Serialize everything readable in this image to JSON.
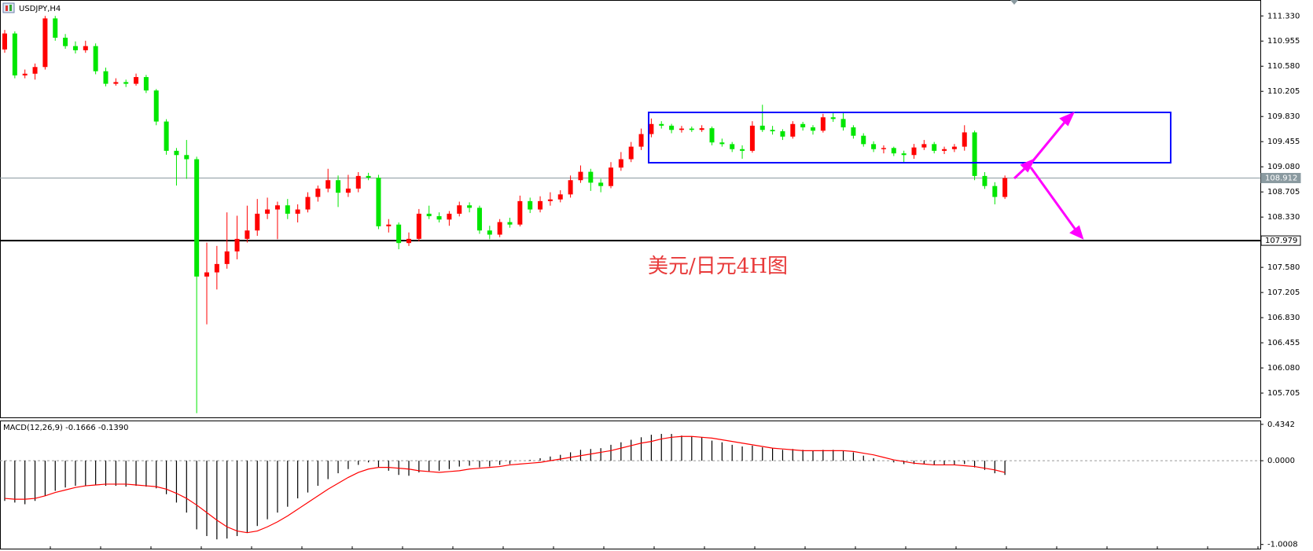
{
  "chart_data": [
    {
      "type": "candlestick",
      "title": "USDJPY,H4",
      "annotation": "美元/日元4H图",
      "up_color": "#ff0000",
      "down_color": "#00e600",
      "ylim": [
        105.3425,
        111.5675
      ],
      "yticks": [
        {
          "value": 111.33,
          "label": "111.330"
        },
        {
          "value": 110.955,
          "label": "110.955"
        },
        {
          "value": 110.58,
          "label": "110.580"
        },
        {
          "value": 110.205,
          "label": "110.205"
        },
        {
          "value": 109.83,
          "label": "109.830"
        },
        {
          "value": 109.455,
          "label": "109.455"
        },
        {
          "value": 109.08,
          "label": "109.080"
        },
        {
          "value": 108.705,
          "label": "108.705"
        },
        {
          "value": 108.33,
          "label": "108.330"
        },
        {
          "value": 107.58,
          "label": "107.580"
        },
        {
          "value": 107.205,
          "label": "107.205"
        },
        {
          "value": 106.83,
          "label": "106.830"
        },
        {
          "value": 106.455,
          "label": "106.455"
        },
        {
          "value": 106.08,
          "label": "106.080"
        },
        {
          "value": 105.705,
          "label": "105.705"
        }
      ],
      "levels": [
        {
          "value": 108.912,
          "label": "108.912",
          "color": "#8a9aa0"
        },
        {
          "value": 107.979,
          "label": "107.979",
          "color": "#000000"
        }
      ],
      "ohlc": [
        [
          110.83,
          111.12,
          110.78,
          111.068
        ],
        [
          111.068,
          111.1,
          110.4,
          110.443
        ],
        [
          110.443,
          110.53,
          110.4,
          110.468
        ],
        [
          110.468,
          110.62,
          110.38,
          110.568
        ],
        [
          110.568,
          111.33,
          110.53,
          111.293
        ],
        [
          111.293,
          111.33,
          110.96,
          111.005
        ],
        [
          111.005,
          111.06,
          110.84,
          110.88
        ],
        [
          110.88,
          110.95,
          110.77,
          110.818
        ],
        [
          110.818,
          110.96,
          110.78,
          110.88
        ],
        [
          110.88,
          110.92,
          110.46,
          110.505
        ],
        [
          110.505,
          110.56,
          110.28,
          110.318
        ],
        [
          110.318,
          110.4,
          110.29,
          110.343
        ],
        [
          110.343,
          110.38,
          110.27,
          110.318
        ],
        [
          110.318,
          110.47,
          110.29,
          110.418
        ],
        [
          110.418,
          110.45,
          110.18,
          110.218
        ],
        [
          110.218,
          110.24,
          109.7,
          109.755
        ],
        [
          109.755,
          109.79,
          109.26,
          109.318
        ],
        [
          109.318,
          109.36,
          108.8,
          109.255
        ],
        [
          109.255,
          109.48,
          108.9,
          109.193
        ],
        [
          109.193,
          109.23,
          105.405,
          107.443
        ],
        [
          107.443,
          107.95,
          106.73,
          107.505
        ],
        [
          107.505,
          107.9,
          107.25,
          107.63
        ],
        [
          107.63,
          108.4,
          107.56,
          107.818
        ],
        [
          107.818,
          108.35,
          107.7,
          108.005
        ],
        [
          108.005,
          108.5,
          107.95,
          108.13
        ],
        [
          108.13,
          108.6,
          108.05,
          108.38
        ],
        [
          108.38,
          108.62,
          108.3,
          108.443
        ],
        [
          108.443,
          108.56,
          108.0,
          108.505
        ],
        [
          108.505,
          108.6,
          108.3,
          108.38
        ],
        [
          108.38,
          108.52,
          108.25,
          108.443
        ],
        [
          108.443,
          108.7,
          108.4,
          108.63
        ],
        [
          108.63,
          108.8,
          108.56,
          108.755
        ],
        [
          108.755,
          109.05,
          108.7,
          108.88
        ],
        [
          108.88,
          108.95,
          108.48,
          108.693
        ],
        [
          108.693,
          108.96,
          108.63,
          108.755
        ],
        [
          108.755,
          109.0,
          108.7,
          108.943
        ],
        [
          108.943,
          108.99,
          108.88,
          108.918
        ],
        [
          108.918,
          108.96,
          108.15,
          108.193
        ],
        [
          108.193,
          108.3,
          108.1,
          108.218
        ],
        [
          108.218,
          108.25,
          107.85,
          107.943
        ],
        [
          107.943,
          108.1,
          107.9,
          108.005
        ],
        [
          108.005,
          108.45,
          107.97,
          108.38
        ],
        [
          108.38,
          108.5,
          108.3,
          108.343
        ],
        [
          108.343,
          108.4,
          108.25,
          108.293
        ],
        [
          108.293,
          108.42,
          108.2,
          108.38
        ],
        [
          108.38,
          108.56,
          108.34,
          108.505
        ],
        [
          108.505,
          108.55,
          108.4,
          108.468
        ],
        [
          108.468,
          108.5,
          108.08,
          108.13
        ],
        [
          108.13,
          108.2,
          108.0,
          108.068
        ],
        [
          108.068,
          108.3,
          108.03,
          108.255
        ],
        [
          108.255,
          108.32,
          108.17,
          108.218
        ],
        [
          108.218,
          108.65,
          108.19,
          108.568
        ],
        [
          108.568,
          108.62,
          108.39,
          108.443
        ],
        [
          108.443,
          108.64,
          108.4,
          108.568
        ],
        [
          108.568,
          108.7,
          108.5,
          108.593
        ],
        [
          108.593,
          108.73,
          108.55,
          108.668
        ],
        [
          108.668,
          108.95,
          108.62,
          108.88
        ],
        [
          108.88,
          109.1,
          108.84,
          109.005
        ],
        [
          109.005,
          109.05,
          108.72,
          108.843
        ],
        [
          108.843,
          108.9,
          108.7,
          108.793
        ],
        [
          108.793,
          109.15,
          108.76,
          109.068
        ],
        [
          109.068,
          109.3,
          109.02,
          109.193
        ],
        [
          109.193,
          109.45,
          109.15,
          109.38
        ],
        [
          109.38,
          109.65,
          109.33,
          109.568
        ],
        [
          109.568,
          109.8,
          109.52,
          109.718
        ],
        [
          109.718,
          109.76,
          109.65,
          109.693
        ],
        [
          109.693,
          109.72,
          109.58,
          109.63
        ],
        [
          109.63,
          109.69,
          109.59,
          109.65
        ],
        [
          109.65,
          109.68,
          109.6,
          109.63
        ],
        [
          109.63,
          109.7,
          109.6,
          109.655
        ],
        [
          109.655,
          109.68,
          109.4,
          109.443
        ],
        [
          109.443,
          109.5,
          109.38,
          109.418
        ],
        [
          109.418,
          109.45,
          109.3,
          109.343
        ],
        [
          109.343,
          109.4,
          109.2,
          109.318
        ],
        [
          109.318,
          109.76,
          109.29,
          109.693
        ],
        [
          109.693,
          110.005,
          109.6,
          109.63
        ],
        [
          109.63,
          109.69,
          109.56,
          109.61
        ],
        [
          109.61,
          109.64,
          109.48,
          109.53
        ],
        [
          109.53,
          109.76,
          109.5,
          109.718
        ],
        [
          109.718,
          109.75,
          109.62,
          109.668
        ],
        [
          109.668,
          109.7,
          109.56,
          109.618
        ],
        [
          109.618,
          109.87,
          109.59,
          109.818
        ],
        [
          109.818,
          109.9,
          109.75,
          109.793
        ],
        [
          109.793,
          109.88,
          109.62,
          109.668
        ],
        [
          109.668,
          109.7,
          109.5,
          109.543
        ],
        [
          109.543,
          109.58,
          109.38,
          109.418
        ],
        [
          109.418,
          109.46,
          109.3,
          109.343
        ],
        [
          109.343,
          109.4,
          109.28,
          109.36
        ],
        [
          109.36,
          109.38,
          109.24,
          109.28
        ],
        [
          109.28,
          109.32,
          109.14,
          109.255
        ],
        [
          109.255,
          109.42,
          109.2,
          109.368
        ],
        [
          109.368,
          109.48,
          109.33,
          109.418
        ],
        [
          109.418,
          109.45,
          109.28,
          109.318
        ],
        [
          109.318,
          109.38,
          109.27,
          109.343
        ],
        [
          109.343,
          109.42,
          109.3,
          109.38
        ],
        [
          109.38,
          109.7,
          109.32,
          109.593
        ],
        [
          109.593,
          109.62,
          108.88,
          108.943
        ],
        [
          108.943,
          109.0,
          108.75,
          108.793
        ],
        [
          108.793,
          108.85,
          108.52,
          108.63
        ],
        [
          108.63,
          108.95,
          108.6,
          108.912
        ]
      ]
    },
    {
      "type": "macd",
      "title": "MACD(12,26,9) -0.1666 -0.1390",
      "histogram_color": "#000000",
      "signal_color": "#ff0000",
      "ylim": [
        -1.06,
        0.48
      ],
      "yticks": [
        {
          "value": 0.4342,
          "label": "0.4342"
        },
        {
          "value": 0,
          "label": "0.0000"
        },
        {
          "value": -1.0008,
          "label": "-1.0008"
        }
      ],
      "histogram": [
        -0.48,
        -0.5,
        -0.52,
        -0.48,
        -0.42,
        -0.36,
        -0.32,
        -0.3,
        -0.3,
        -0.29,
        -0.3,
        -0.3,
        -0.31,
        -0.3,
        -0.31,
        -0.33,
        -0.4,
        -0.5,
        -0.62,
        -0.82,
        -0.9,
        -0.94,
        -0.93,
        -0.9,
        -0.86,
        -0.78,
        -0.7,
        -0.62,
        -0.55,
        -0.45,
        -0.38,
        -0.3,
        -0.22,
        -0.15,
        -0.1,
        -0.05,
        -0.02,
        -0.08,
        -0.12,
        -0.17,
        -0.18,
        -0.14,
        -0.13,
        -0.12,
        -0.1,
        -0.07,
        -0.06,
        -0.08,
        -0.07,
        -0.05,
        -0.04,
        0,
        0.01,
        0.03,
        0.05,
        0.07,
        0.1,
        0.13,
        0.14,
        0.15,
        0.19,
        0.22,
        0.25,
        0.28,
        0.31,
        0.32,
        0.32,
        0.3,
        0.29,
        0.28,
        0.24,
        0.22,
        0.19,
        0.17,
        0.18,
        0.16,
        0.15,
        0.13,
        0.14,
        0.13,
        0.12,
        0.13,
        0.13,
        0.12,
        0.1,
        0.06,
        0.03,
        0,
        -0.02,
        -0.04,
        -0.04,
        -0.04,
        -0.05,
        -0.05,
        -0.05,
        -0.04,
        -0.08,
        -0.11,
        -0.15,
        -0.17
      ],
      "signal": [
        -0.45,
        -0.46,
        -0.46,
        -0.45,
        -0.42,
        -0.38,
        -0.35,
        -0.32,
        -0.3,
        -0.29,
        -0.28,
        -0.28,
        -0.28,
        -0.29,
        -0.3,
        -0.31,
        -0.34,
        -0.39,
        -0.45,
        -0.53,
        -0.62,
        -0.71,
        -0.79,
        -0.84,
        -0.86,
        -0.84,
        -0.79,
        -0.73,
        -0.66,
        -0.58,
        -0.5,
        -0.42,
        -0.34,
        -0.27,
        -0.2,
        -0.14,
        -0.1,
        -0.08,
        -0.08,
        -0.09,
        -0.1,
        -0.12,
        -0.13,
        -0.14,
        -0.13,
        -0.12,
        -0.1,
        -0.09,
        -0.08,
        -0.07,
        -0.05,
        -0.04,
        -0.03,
        -0.02,
        0,
        0.02,
        0.04,
        0.06,
        0.08,
        0.1,
        0.12,
        0.15,
        0.18,
        0.21,
        0.23,
        0.26,
        0.28,
        0.29,
        0.29,
        0.28,
        0.27,
        0.25,
        0.23,
        0.21,
        0.19,
        0.17,
        0.15,
        0.14,
        0.13,
        0.12,
        0.12,
        0.12,
        0.12,
        0.12,
        0.11,
        0.09,
        0.07,
        0.04,
        0.01,
        -0.01,
        -0.03,
        -0.04,
        -0.05,
        -0.05,
        -0.05,
        -0.06,
        -0.07,
        -0.09,
        -0.11,
        -0.14
      ]
    }
  ]
}
